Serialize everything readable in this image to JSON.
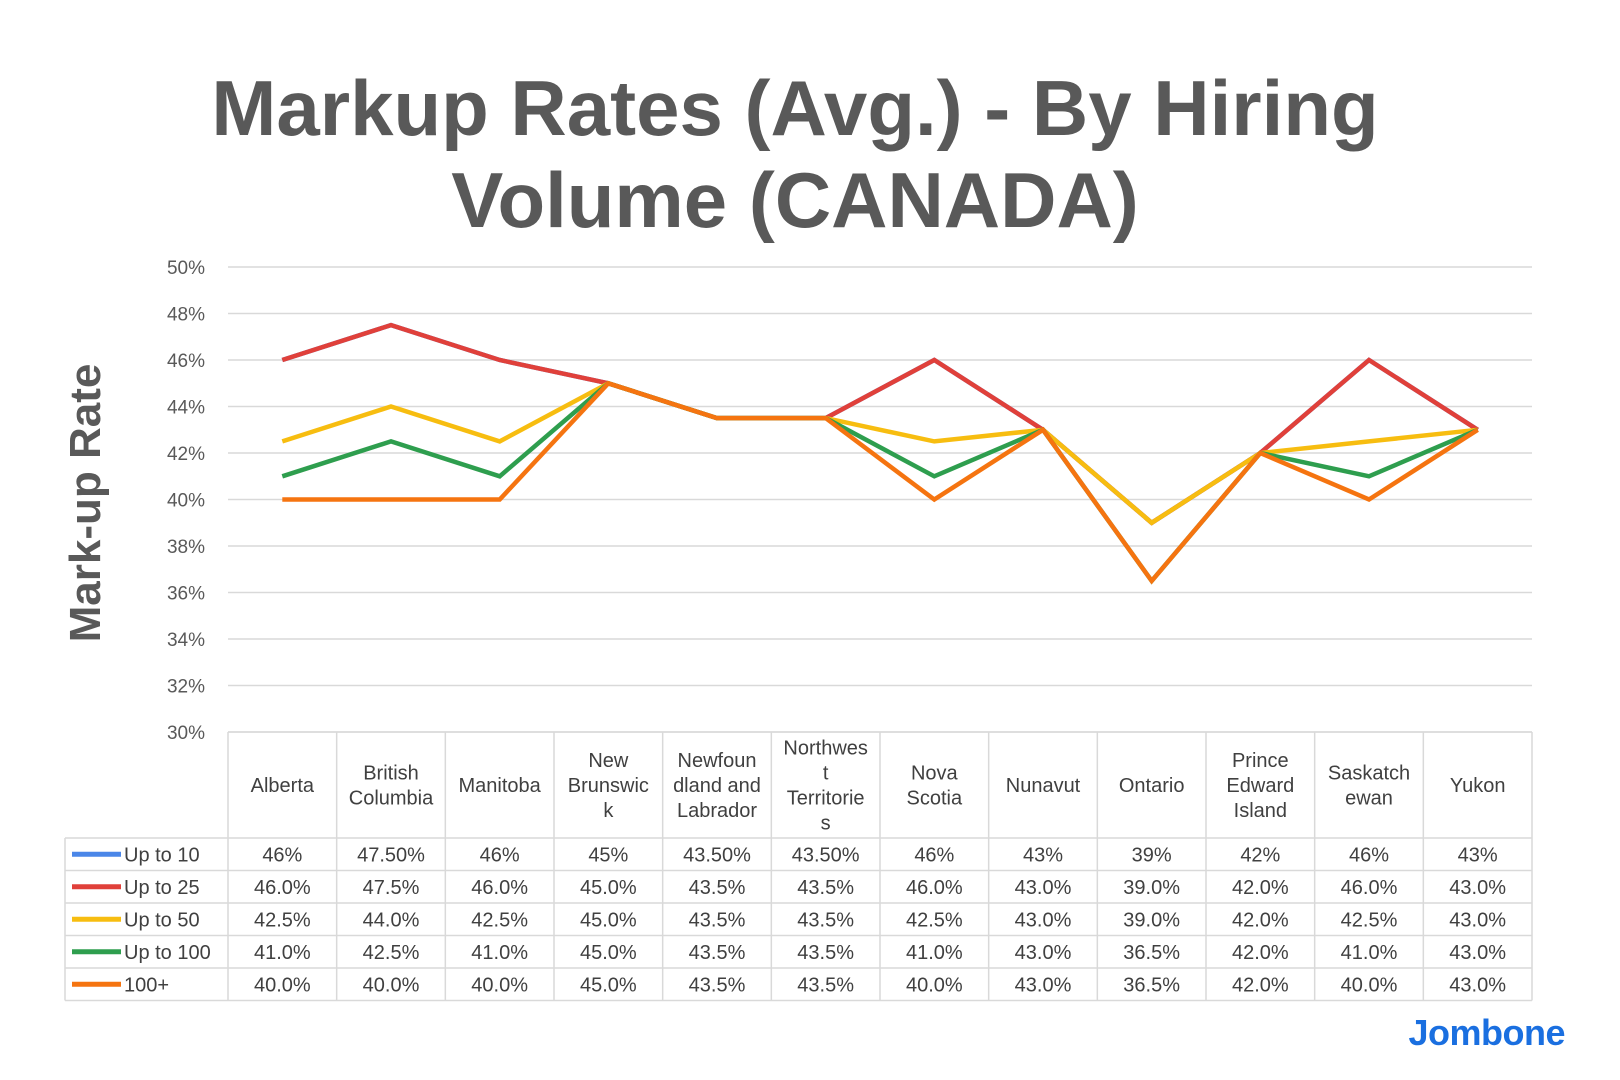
{
  "title_lines": [
    "Markup Rates (Avg.) - By Hiring",
    "Volume (CANADA)"
  ],
  "brand": "Jombone",
  "chart_data": {
    "type": "line",
    "title": "Markup Rates (Avg.) - By Hiring Volume (CANADA)",
    "ylabel": "Mark-up Rate",
    "xlabel": "",
    "ylim": [
      30,
      50
    ],
    "y_ticks": [
      "30%",
      "32%",
      "34%",
      "36%",
      "38%",
      "40%",
      "42%",
      "44%",
      "46%",
      "48%",
      "50%"
    ],
    "grid": true,
    "legend": "data-table",
    "categories": [
      "Alberta",
      "British Columbia",
      "Manitoba",
      "New Brunswick",
      "Newfoundland and Labrador",
      "Northwest Territories",
      "Nova Scotia",
      "Nunavut",
      "Ontario",
      "Prince Edward Island",
      "Saskatchewan",
      "Yukon"
    ],
    "category_label_lines": [
      [
        "Alberta"
      ],
      [
        "British",
        "Columbia"
      ],
      [
        "Manitoba"
      ],
      [
        "New",
        "Brunswic",
        "k"
      ],
      [
        "Newfoun",
        "dland and",
        "Labrador"
      ],
      [
        "Northwes",
        "t",
        "Territorie",
        "s"
      ],
      [
        "Nova",
        "Scotia"
      ],
      [
        "Nunavut"
      ],
      [
        "Ontario"
      ],
      [
        "Prince",
        "Edward",
        "Island"
      ],
      [
        "Saskatch",
        "ewan"
      ],
      [
        "Yukon"
      ]
    ],
    "series": [
      {
        "name": "Up to 10",
        "color": "#4a86e8",
        "values": [
          46,
          47.5,
          46,
          45,
          43.5,
          43.5,
          46,
          43,
          39,
          42,
          46,
          43
        ],
        "labels": [
          "46%",
          "47.50%",
          "46%",
          "45%",
          "43.50%",
          "43.50%",
          "46%",
          "43%",
          "39%",
          "42%",
          "46%",
          "43%"
        ]
      },
      {
        "name": "Up to 25",
        "color": "#e0403a",
        "values": [
          46,
          47.5,
          46,
          45,
          43.5,
          43.5,
          46,
          43,
          39,
          42,
          46,
          43
        ],
        "labels": [
          "46.0%",
          "47.5%",
          "46.0%",
          "45.0%",
          "43.5%",
          "43.5%",
          "46.0%",
          "43.0%",
          "39.0%",
          "42.0%",
          "46.0%",
          "43.0%"
        ]
      },
      {
        "name": "Up to 50",
        "color": "#f7bd10",
        "values": [
          42.5,
          44,
          42.5,
          45,
          43.5,
          43.5,
          42.5,
          43,
          39,
          42,
          42.5,
          43
        ],
        "labels": [
          "42.5%",
          "44.0%",
          "42.5%",
          "45.0%",
          "43.5%",
          "43.5%",
          "42.5%",
          "43.0%",
          "39.0%",
          "42.0%",
          "42.5%",
          "43.0%"
        ]
      },
      {
        "name": "Up to 100",
        "color": "#2e9e4e",
        "values": [
          41,
          42.5,
          41,
          45,
          43.5,
          43.5,
          41,
          43,
          36.5,
          42,
          41,
          43
        ],
        "labels": [
          "41.0%",
          "42.5%",
          "41.0%",
          "45.0%",
          "43.5%",
          "43.5%",
          "41.0%",
          "43.0%",
          "36.5%",
          "42.0%",
          "41.0%",
          "43.0%"
        ]
      },
      {
        "name": "100+",
        "color": "#f57410",
        "values": [
          40,
          40,
          40,
          45,
          43.5,
          43.5,
          40,
          43,
          36.5,
          42,
          40,
          43
        ],
        "labels": [
          "40.0%",
          "40.0%",
          "40.0%",
          "45.0%",
          "43.5%",
          "43.5%",
          "40.0%",
          "43.0%",
          "36.5%",
          "42.0%",
          "40.0%",
          "43.0%"
        ]
      }
    ]
  }
}
